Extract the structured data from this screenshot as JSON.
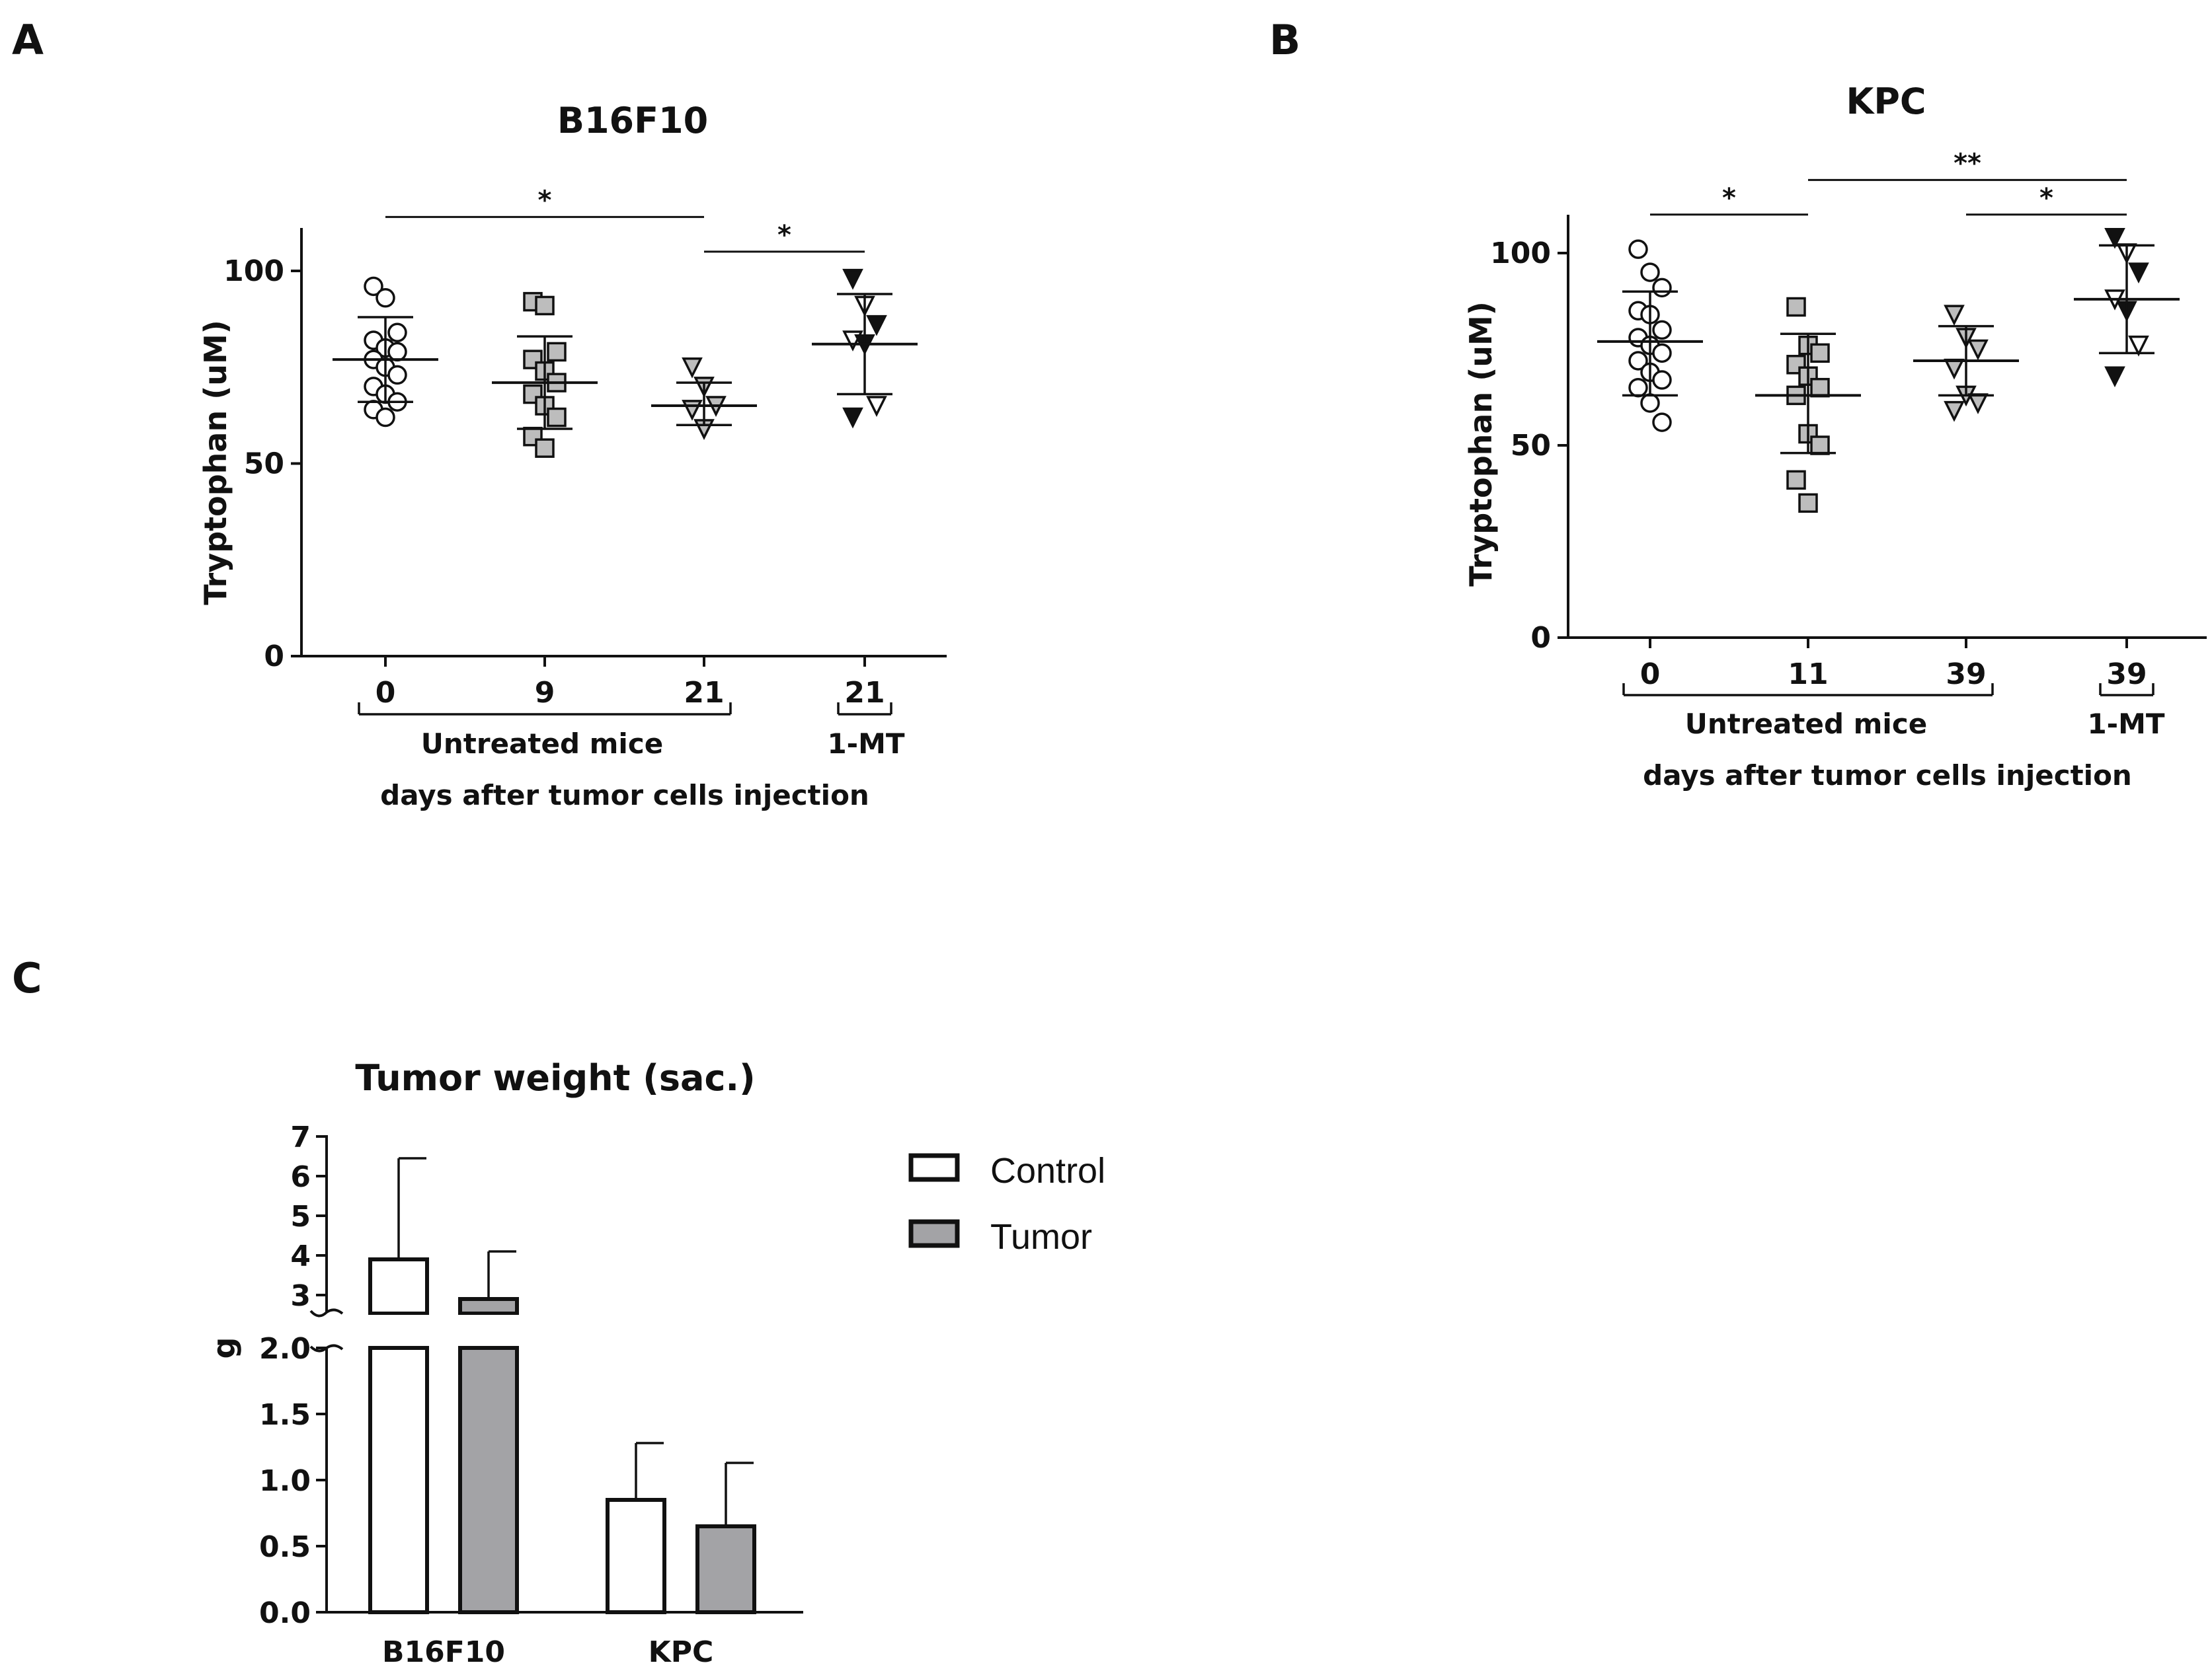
{
  "colors": {
    "ink": "#111111",
    "gray_fill": "#bdbdbd",
    "bar_gray": "#a3a3a6",
    "bar_white": "#ffffff"
  },
  "chart_data": [
    {
      "panel": "A",
      "type": "scatter",
      "title": "B16F10",
      "ylabel": "Tryptophan (uM)",
      "xlabel": "days after tumor cells injection",
      "ylim": [
        0,
        110
      ],
      "yticks": [
        0,
        50,
        100
      ],
      "brackets": [
        {
          "label": "Untreated mice",
          "from": 0,
          "to": 2
        },
        {
          "label": "1-MT",
          "from": 3,
          "to": 3
        }
      ],
      "groups": [
        {
          "label": "0",
          "marker": "circle",
          "fill": "white",
          "mean": 77,
          "sd_low": 66,
          "sd_high": 88,
          "values": [
            96,
            93,
            84,
            82,
            80,
            79,
            77,
            75,
            73,
            70,
            68,
            66,
            64,
            62
          ]
        },
        {
          "label": "9",
          "marker": "square",
          "fill": "gray",
          "mean": 71,
          "sd_low": 59,
          "sd_high": 83,
          "values": [
            92,
            91,
            79,
            77,
            74,
            71,
            68,
            65,
            62,
            57,
            54
          ]
        },
        {
          "label": "21",
          "marker": "triangle-down",
          "fill": "gray",
          "mean": 65,
          "sd_low": 60,
          "sd_high": 71,
          "values": [
            75,
            70,
            65,
            64,
            59
          ]
        },
        {
          "label": "21",
          "marker": "triangle-down",
          "fill": "mixed",
          "mean": 81,
          "sd_low": 68,
          "sd_high": 94,
          "values": [
            98,
            91,
            86,
            82,
            81,
            65,
            62
          ]
        }
      ],
      "significance": [
        {
          "from": 0,
          "to": 2,
          "label": "*",
          "y": 114
        },
        {
          "from": 2,
          "to": 3,
          "label": "*",
          "y": 105
        }
      ]
    },
    {
      "panel": "B",
      "type": "scatter",
      "title": "KPC",
      "ylabel": "Tryptophan (uM)",
      "xlabel": "days after tumor cells injection",
      "ylim": [
        0,
        110
      ],
      "yticks": [
        0,
        50,
        100
      ],
      "brackets": [
        {
          "label": "Untreated mice",
          "from": 0,
          "to": 2
        },
        {
          "label": "1-MT",
          "from": 3,
          "to": 3
        }
      ],
      "groups": [
        {
          "label": "0",
          "marker": "circle",
          "fill": "white",
          "mean": 77,
          "sd_low": 63,
          "sd_high": 90,
          "values": [
            101,
            95,
            91,
            85,
            84,
            80,
            78,
            76,
            74,
            72,
            69,
            67,
            65,
            61,
            56
          ]
        },
        {
          "label": "11",
          "marker": "square",
          "fill": "gray",
          "mean": 63,
          "sd_low": 48,
          "sd_high": 79,
          "values": [
            86,
            76,
            74,
            71,
            68,
            65,
            63,
            53,
            50,
            41,
            35
          ]
        },
        {
          "label": "39",
          "marker": "triangle-down",
          "fill": "gray",
          "mean": 72,
          "sd_low": 63,
          "sd_high": 81,
          "values": [
            84,
            78,
            75,
            70,
            63,
            61,
            59
          ]
        },
        {
          "label": "39",
          "marker": "triangle-down",
          "fill": "mixed",
          "mean": 88,
          "sd_low": 74,
          "sd_high": 102,
          "values": [
            104,
            100,
            95,
            88,
            85,
            76,
            68
          ]
        }
      ],
      "significance": [
        {
          "from": 0,
          "to": 1,
          "label": "*",
          "y": 110
        },
        {
          "from": 1,
          "to": 3,
          "label": "**",
          "y": 119
        },
        {
          "from": 2,
          "to": 3,
          "label": "*",
          "y": 110
        }
      ]
    },
    {
      "panel": "C",
      "type": "bar",
      "title": "Tumor weight (sac.)",
      "ylabel": "g",
      "categories": [
        "B16F10",
        "KPC"
      ],
      "series": [
        {
          "name": "Control",
          "values": [
            3.9,
            0.85
          ],
          "error": [
            2.55,
            0.43
          ]
        },
        {
          "name": "Tumor",
          "values": [
            2.9,
            0.65
          ],
          "error": [
            1.2,
            0.48
          ]
        }
      ],
      "broken_axis": {
        "lower_range": [
          0,
          2.0
        ],
        "upper_range": [
          2.5,
          7
        ]
      },
      "yticks_lower": [
        "0.0",
        "0.5",
        "1.0",
        "1.5",
        "2.0"
      ],
      "yticks_upper": [
        "3",
        "4",
        "5",
        "6",
        "7"
      ],
      "legend": [
        "Control",
        "Tumor"
      ]
    }
  ]
}
